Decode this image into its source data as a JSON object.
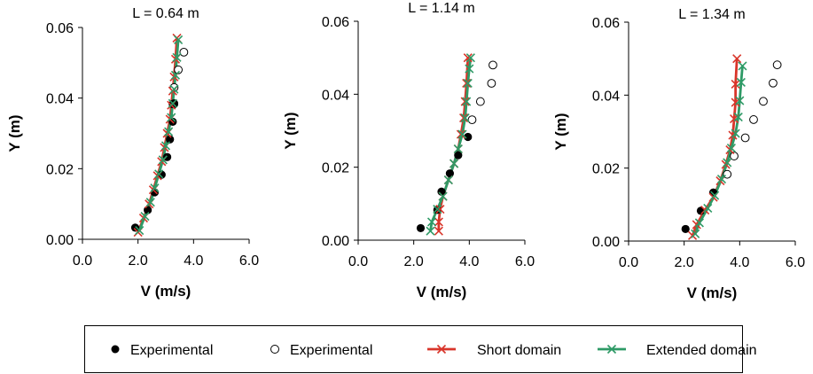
{
  "chart_data": [
    {
      "type": "scatter",
      "title": "L = 0.64 m",
      "xlabel": "V (m/s)",
      "ylabel": "Y (m)",
      "xlim": [
        0,
        6
      ],
      "ylim": [
        0,
        0.06
      ],
      "xticks": [
        "0.0",
        "2.0",
        "4.0",
        "6.0"
      ],
      "yticks": [
        "0.00",
        "0.02",
        "0.04",
        "0.06"
      ],
      "grid": false,
      "series": [
        {
          "name": "Experimental",
          "marker": "filled-circle",
          "x": [
            1.9,
            2.35,
            2.6,
            2.85,
            3.05,
            3.15,
            3.25,
            3.25,
            3.3,
            3.3
          ],
          "y": [
            0.0033,
            0.0083,
            0.0133,
            0.0183,
            0.0233,
            0.0283,
            0.0333,
            0.0383,
            0.0385,
            0.0383
          ]
        },
        {
          "name": "Experimental",
          "marker": "open-circle",
          "x": [
            3.3,
            3.45,
            3.65
          ],
          "y": [
            0.043,
            0.048,
            0.053
          ]
        },
        {
          "name": "Short domain",
          "marker": "x-line",
          "color": "#d9352a",
          "x": [
            2.0,
            2.2,
            2.4,
            2.55,
            2.7,
            2.85,
            2.95,
            3.05,
            3.15,
            3.2,
            3.25,
            3.3,
            3.35,
            3.4
          ],
          "y": [
            0.002,
            0.006,
            0.01,
            0.014,
            0.018,
            0.022,
            0.026,
            0.03,
            0.034,
            0.038,
            0.042,
            0.046,
            0.051,
            0.057
          ]
        },
        {
          "name": "Extended domain",
          "marker": "x-line",
          "color": "#2e9a66",
          "x": [
            2.05,
            2.25,
            2.45,
            2.6,
            2.75,
            2.9,
            3.0,
            3.1,
            3.2,
            3.25,
            3.3,
            3.35,
            3.4,
            3.45
          ],
          "y": [
            0.0025,
            0.0065,
            0.0105,
            0.0145,
            0.0185,
            0.0225,
            0.0265,
            0.0305,
            0.0345,
            0.0385,
            0.0425,
            0.0465,
            0.0515,
            0.0565
          ]
        }
      ]
    },
    {
      "type": "scatter",
      "title": "L = 1.14 m",
      "xlabel": "V (m/s)",
      "ylabel": "Y (m)",
      "xlim": [
        0,
        6
      ],
      "ylim": [
        0,
        0.06
      ],
      "xticks": [
        "0.0",
        "2.0",
        "4.0",
        "6.0"
      ],
      "yticks": [
        "0.00",
        "0.02",
        "0.04",
        "0.06"
      ],
      "grid": false,
      "series": [
        {
          "name": "Experimental",
          "marker": "filled-circle",
          "x": [
            2.25,
            2.85,
            3.0,
            3.3,
            3.6,
            3.95
          ],
          "y": [
            0.0033,
            0.0083,
            0.0133,
            0.0183,
            0.0233,
            0.0283
          ]
        },
        {
          "name": "Experimental",
          "marker": "open-circle",
          "x": [
            4.1,
            4.4,
            4.8,
            4.85
          ],
          "y": [
            0.033,
            0.038,
            0.043,
            0.048
          ]
        },
        {
          "name": "Short domain",
          "marker": "x-line",
          "color": "#d9352a",
          "x": [
            2.9,
            2.9,
            2.95,
            3.05,
            3.25,
            3.45,
            3.6,
            3.7,
            3.8,
            3.85,
            3.9,
            3.95
          ],
          "y": [
            0.0025,
            0.005,
            0.0085,
            0.012,
            0.0165,
            0.021,
            0.025,
            0.029,
            0.0335,
            0.038,
            0.043,
            0.05
          ]
        },
        {
          "name": "Extended domain",
          "marker": "x-line",
          "color": "#2e9a66",
          "x": [
            2.6,
            2.65,
            2.85,
            3.05,
            3.25,
            3.45,
            3.6,
            3.75,
            3.85,
            3.9,
            3.95,
            4.0,
            4.05
          ],
          "y": [
            0.0025,
            0.005,
            0.0085,
            0.012,
            0.0165,
            0.021,
            0.025,
            0.029,
            0.0335,
            0.038,
            0.043,
            0.047,
            0.05
          ]
        }
      ]
    },
    {
      "type": "scatter",
      "title": "L = 1.34 m",
      "xlabel": "V (m/s)",
      "ylabel": "Y (m)",
      "xlim": [
        0,
        6
      ],
      "ylim": [
        0,
        0.06
      ],
      "xticks": [
        "0.0",
        "2.0",
        "4.0",
        "6.0"
      ],
      "yticks": [
        "0.00",
        "0.02",
        "0.04",
        "0.06"
      ],
      "grid": false,
      "series": [
        {
          "name": "Experimental",
          "marker": "filled-circle",
          "x": [
            2.05,
            2.6,
            3.05
          ],
          "y": [
            0.0033,
            0.0083,
            0.0133
          ]
        },
        {
          "name": "Experimental",
          "marker": "open-circle",
          "x": [
            3.55,
            3.8,
            4.2,
            4.5,
            4.85,
            5.2,
            5.35
          ],
          "y": [
            0.0183,
            0.0233,
            0.0283,
            0.0333,
            0.0383,
            0.0433,
            0.0483
          ]
        },
        {
          "name": "Short domain",
          "marker": "x-line",
          "color": "#d9352a",
          "x": [
            2.3,
            2.45,
            2.75,
            3.05,
            3.3,
            3.5,
            3.65,
            3.75,
            3.8,
            3.85,
            3.85,
            3.9
          ],
          "y": [
            0.0015,
            0.0045,
            0.0085,
            0.012,
            0.0165,
            0.021,
            0.025,
            0.029,
            0.0335,
            0.038,
            0.043,
            0.05
          ]
        },
        {
          "name": "Extended domain",
          "marker": "x-line",
          "color": "#2e9a66",
          "x": [
            2.4,
            2.55,
            2.85,
            3.1,
            3.35,
            3.55,
            3.7,
            3.85,
            3.95,
            4.0,
            4.05,
            4.1
          ],
          "y": [
            0.002,
            0.005,
            0.009,
            0.0125,
            0.017,
            0.0215,
            0.0255,
            0.0295,
            0.034,
            0.0385,
            0.0435,
            0.048
          ]
        }
      ]
    }
  ],
  "legend": {
    "placement": "bottom",
    "items": [
      {
        "label": "Experimental",
        "marker": "filled-circle"
      },
      {
        "label": "Experimental",
        "marker": "open-circle"
      },
      {
        "label": "Short domain",
        "marker": "x-line",
        "color": "#d9352a"
      },
      {
        "label": "Extended domain",
        "marker": "x-line",
        "color": "#2e9a66"
      }
    ]
  }
}
